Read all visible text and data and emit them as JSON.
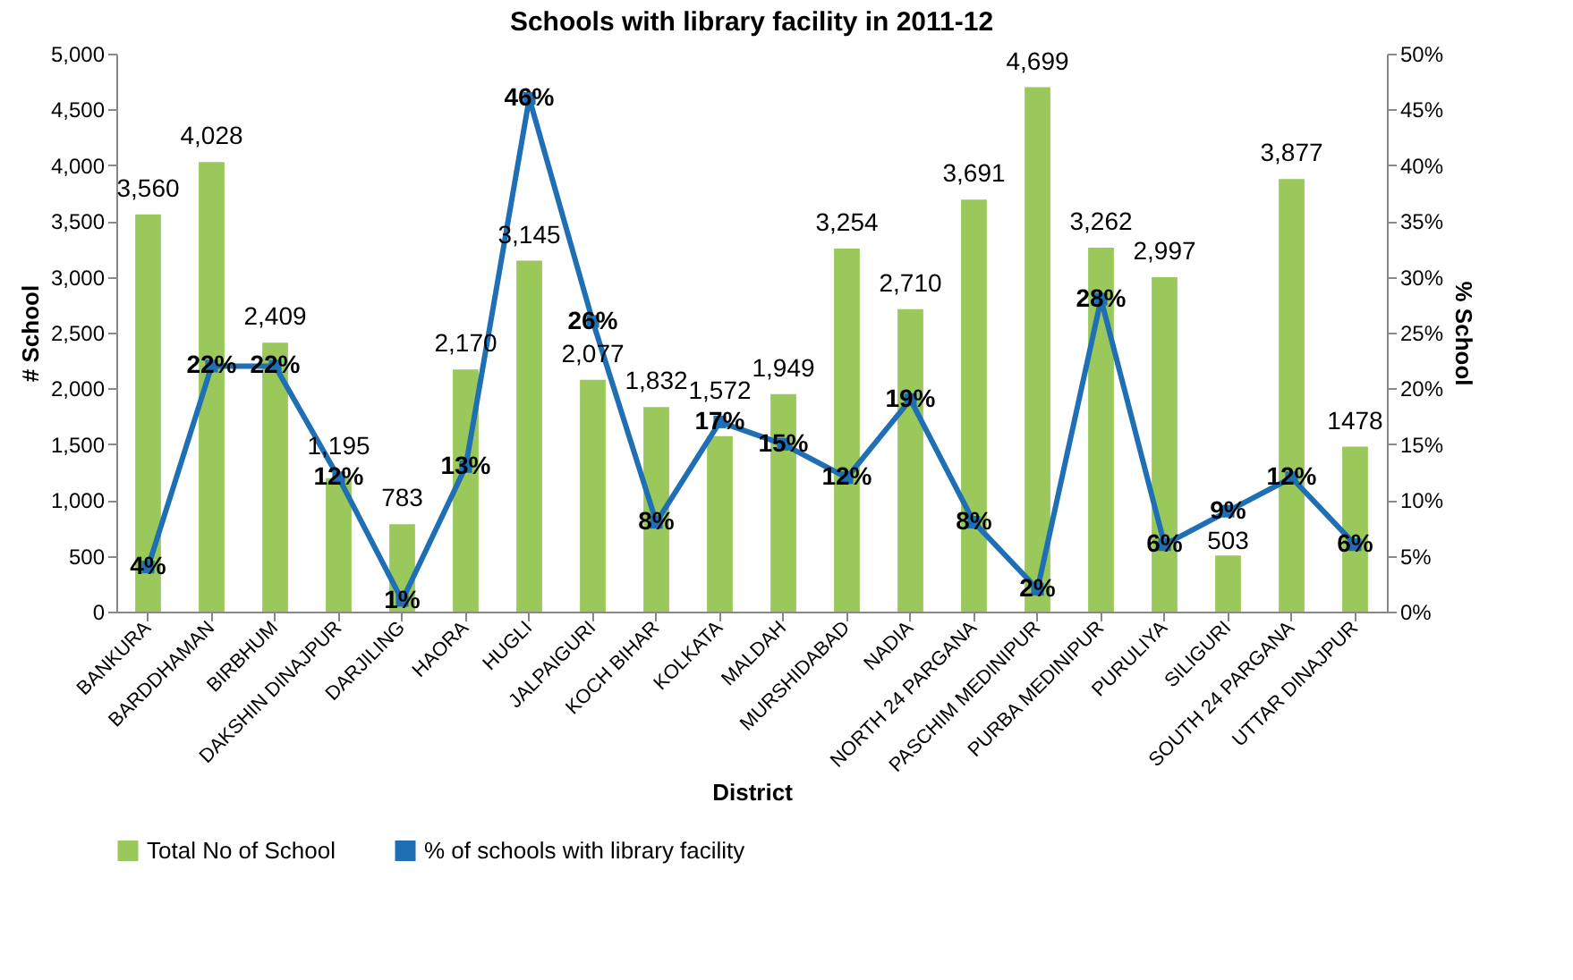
{
  "chart_data": {
    "type": "bar",
    "title": "Schools with library facility  in 2011-12",
    "xlabel": "District",
    "ylabel": "# School",
    "y2label": "% School",
    "categories": [
      "BANKURA",
      "BARDDHAMAN",
      "BIRBHUM",
      "DAKSHIN DINAJPUR",
      "DARJILING",
      "HAORA",
      "HUGLI",
      "JALPAIGURI",
      "KOCH BIHAR",
      "KOLKATA",
      "MALDAH",
      "MURSHIDABAD",
      "NADIA",
      "NORTH 24 PARGANA",
      "PASCHIM MEDINIPUR",
      "PURBA MEDINIPUR",
      "PURULIYA",
      "SILIGURI",
      "SOUTH  24 PARGANA",
      "UTTAR DINAJPUR"
    ],
    "series": [
      {
        "name": "Total No of School",
        "color": "#9bc85a",
        "values": [
          3560,
          4028,
          2409,
          1195,
          783,
          2170,
          3145,
          2077,
          1832,
          1572,
          1949,
          3254,
          2710,
          3691,
          4699,
          3262,
          2997,
          503,
          3877,
          1478
        ],
        "value_labels": [
          "3,560",
          "4,028",
          "2,409",
          "1,195",
          "783",
          "2,170",
          "3,145",
          "2,077",
          "1,832",
          "1,572",
          "1,949",
          "3,254",
          "2,710",
          "3,691",
          "4,699",
          "3,262",
          "2,997",
          "503",
          "3,877",
          "1478"
        ]
      },
      {
        "name": "% of schools with library facility",
        "type": "line",
        "axis": "y2",
        "color": "#1f6fb5",
        "marker": "square",
        "line_style": "solid",
        "values": [
          4,
          22,
          22,
          12,
          1,
          13,
          46,
          26,
          8,
          17,
          15,
          12,
          19,
          8,
          2,
          28,
          6,
          9,
          12,
          6
        ],
        "value_labels": [
          "4%",
          "22%",
          "22%",
          "12%",
          "1%",
          "13%",
          "46%",
          "26%",
          "8%",
          "17%",
          "15%",
          "12%",
          "19%",
          "8%",
          "2%",
          "28%",
          "6%",
          "9%",
          "12%",
          "6%"
        ]
      }
    ],
    "ylim": [
      0,
      5000
    ],
    "yticks": [
      0,
      500,
      {
        "value": 1000,
        "label": "1,000"
      },
      {
        "value": 1500,
        "label": "1,500"
      },
      {
        "value": 2000,
        "label": "2,000"
      },
      {
        "value": 2500,
        "label": "2,500"
      },
      {
        "value": 3000,
        "label": "3,000"
      },
      {
        "value": 3500,
        "label": "3,500"
      },
      {
        "value": 4000,
        "label": "4,000"
      },
      {
        "value": 4500,
        "label": "4,500"
      },
      {
        "value": 5000,
        "label": "5,000"
      }
    ],
    "y2lim": [
      0,
      50
    ],
    "y2ticks": [
      {
        "value": 0,
        "label": "0%"
      },
      {
        "value": 5,
        "label": "5%"
      },
      {
        "value": 10,
        "label": "10%"
      },
      {
        "value": 15,
        "label": "15%"
      },
      {
        "value": 20,
        "label": "20%"
      },
      {
        "value": 25,
        "label": "25%"
      },
      {
        "value": 30,
        "label": "30%"
      },
      {
        "value": 35,
        "label": "35%"
      },
      {
        "value": 40,
        "label": "40%"
      },
      {
        "value": 45,
        "label": "45%"
      },
      {
        "value": 50,
        "label": "50%"
      }
    ],
    "legend": "bottom"
  }
}
